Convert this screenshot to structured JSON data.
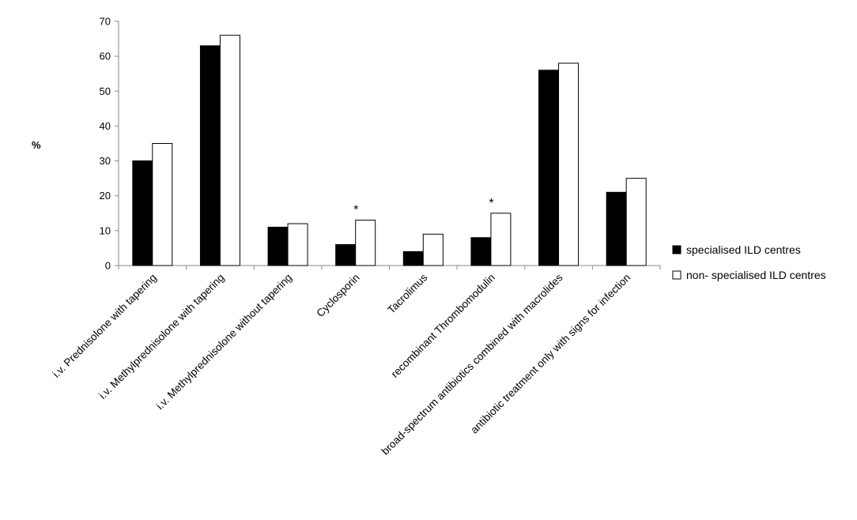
{
  "chart_data": {
    "type": "bar",
    "categories": [
      "i.v. Prednisolone with tapering",
      "i.v. Methylprednisolone with tapering",
      "i.v. Methylprednisolone without tapering",
      "Cyclosporin",
      "Tacrolimus",
      "recombinant Thrombomodulin",
      "broad-spectrum antibiotics combined with macrolides",
      "antibiotic treatment only with signs for infection"
    ],
    "series": [
      {
        "name": "specialised ILD centres",
        "color": "#000000",
        "values": [
          30,
          63,
          11,
          6,
          4,
          8,
          56,
          21
        ]
      },
      {
        "name": "non- specialised ILD centres",
        "color": "#ffffff",
        "values": [
          35,
          66,
          12,
          13,
          9,
          15,
          58,
          25
        ]
      }
    ],
    "ylabel": "%",
    "ylim": [
      0,
      70
    ],
    "yticks": [
      0,
      10,
      20,
      30,
      40,
      50,
      60,
      70
    ],
    "grid": false,
    "legend_position": "right",
    "annotations": [
      {
        "category_index": 3,
        "text": "*"
      },
      {
        "category_index": 5,
        "text": "*"
      }
    ]
  }
}
